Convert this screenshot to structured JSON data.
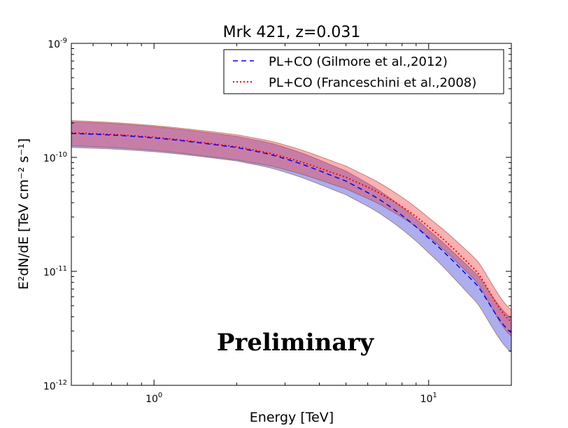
{
  "chart_data": {
    "type": "line",
    "title": "Mrk 421, z=0.031",
    "xlabel": "Energy [TeV]",
    "ylabel": "E²dN/dE [TeV cm⁻² s⁻¹]",
    "xscale": "log",
    "yscale": "log",
    "xlim": [
      0.5,
      20
    ],
    "ylim": [
      1e-12,
      1e-09
    ],
    "x_ticks": [
      {
        "value": 1,
        "base": "10",
        "exp": "0"
      },
      {
        "value": 10,
        "base": "10",
        "exp": "1"
      }
    ],
    "y_ticks": [
      {
        "value": 1e-12,
        "base": "10",
        "exp": "-12"
      },
      {
        "value": 1e-11,
        "base": "10",
        "exp": "-11"
      },
      {
        "value": 1e-10,
        "base": "10",
        "exp": "-10"
      },
      {
        "value": 1e-09,
        "base": "10",
        "exp": "-9"
      }
    ],
    "annotation": "Preliminary",
    "legend_position": "top-right",
    "series": [
      {
        "name": "PL+CO (Gilmore et al.,2012)",
        "color": "#0000ff",
        "style": "dashed",
        "band_color": "#0000cc",
        "x": [
          0.5,
          1.0,
          2.0,
          3.0,
          5.0,
          7.0,
          10.0,
          15.0,
          20.0
        ],
        "y": [
          1.62e-10,
          1.48e-10,
          1.22e-10,
          9.7e-11,
          6.2e-11,
          3.9e-11,
          1.95e-11,
          7.6e-12,
          2.9e-12
        ],
        "upper": [
          2.05e-10,
          1.86e-10,
          1.53e-10,
          1.22e-10,
          7.6e-11,
          4.65e-11,
          2.3e-11,
          9.4e-12,
          3.9e-12
        ],
        "lower": [
          1.22e-10,
          1.12e-10,
          9.3e-11,
          7.4e-11,
          4.7e-11,
          2.95e-11,
          1.45e-11,
          5.3e-12,
          1.95e-12
        ]
      },
      {
        "name": "PL+CO (Franceschini et al.,2008)",
        "color": "#ff0000",
        "style": "dotted",
        "band_color": "#ee3333",
        "x": [
          0.5,
          1.0,
          2.0,
          3.0,
          5.0,
          7.0,
          10.0,
          15.0,
          20.0
        ],
        "y": [
          1.64e-10,
          1.5e-10,
          1.24e-10,
          1e-10,
          6.7e-11,
          4.5e-11,
          2.45e-11,
          9.9e-12,
          3.6e-12
        ],
        "upper": [
          2.1e-10,
          1.9e-10,
          1.58e-10,
          1.28e-10,
          8.4e-11,
          5.5e-11,
          2.95e-11,
          1.25e-11,
          4.6e-12
        ],
        "lower": [
          1.26e-10,
          1.15e-10,
          9.5e-11,
          7.8e-11,
          5.3e-11,
          3.6e-11,
          2e-11,
          8e-12,
          2.7e-12
        ]
      }
    ]
  }
}
